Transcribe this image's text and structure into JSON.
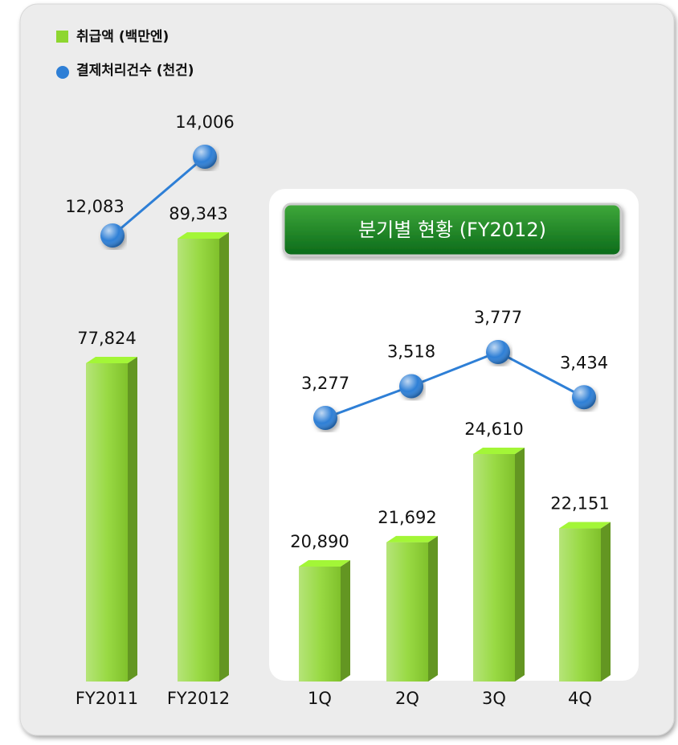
{
  "chart_data": [
    {
      "type": "combo",
      "categories": [
        "FY2011",
        "FY2012"
      ],
      "series": [
        {
          "name": "취급액 (백만엔)",
          "type": "bar",
          "color": "#8ed630",
          "values": [
            77824,
            89343
          ],
          "value_labels": [
            "77,824",
            "89,343"
          ]
        },
        {
          "name": "결제처리건수 (천건)",
          "type": "line",
          "color": "#2e7fd6",
          "values": [
            12083,
            14006
          ],
          "value_labels": [
            "12,083",
            "14,006"
          ]
        }
      ]
    },
    {
      "type": "combo",
      "title": "분기별 현황 (FY2012)",
      "categories": [
        "1Q",
        "2Q",
        "3Q",
        "4Q"
      ],
      "series": [
        {
          "type": "bar",
          "color": "#8ed630",
          "values": [
            20890,
            21692,
            24610,
            22151
          ],
          "value_labels": [
            "20,890",
            "21,692",
            "24,610",
            "22,151"
          ]
        },
        {
          "type": "line",
          "color": "#2e7fd6",
          "values": [
            3277,
            3518,
            3777,
            3434
          ],
          "value_labels": [
            "3,277",
            "3,518",
            "3,777",
            "3,434"
          ]
        }
      ]
    }
  ]
}
